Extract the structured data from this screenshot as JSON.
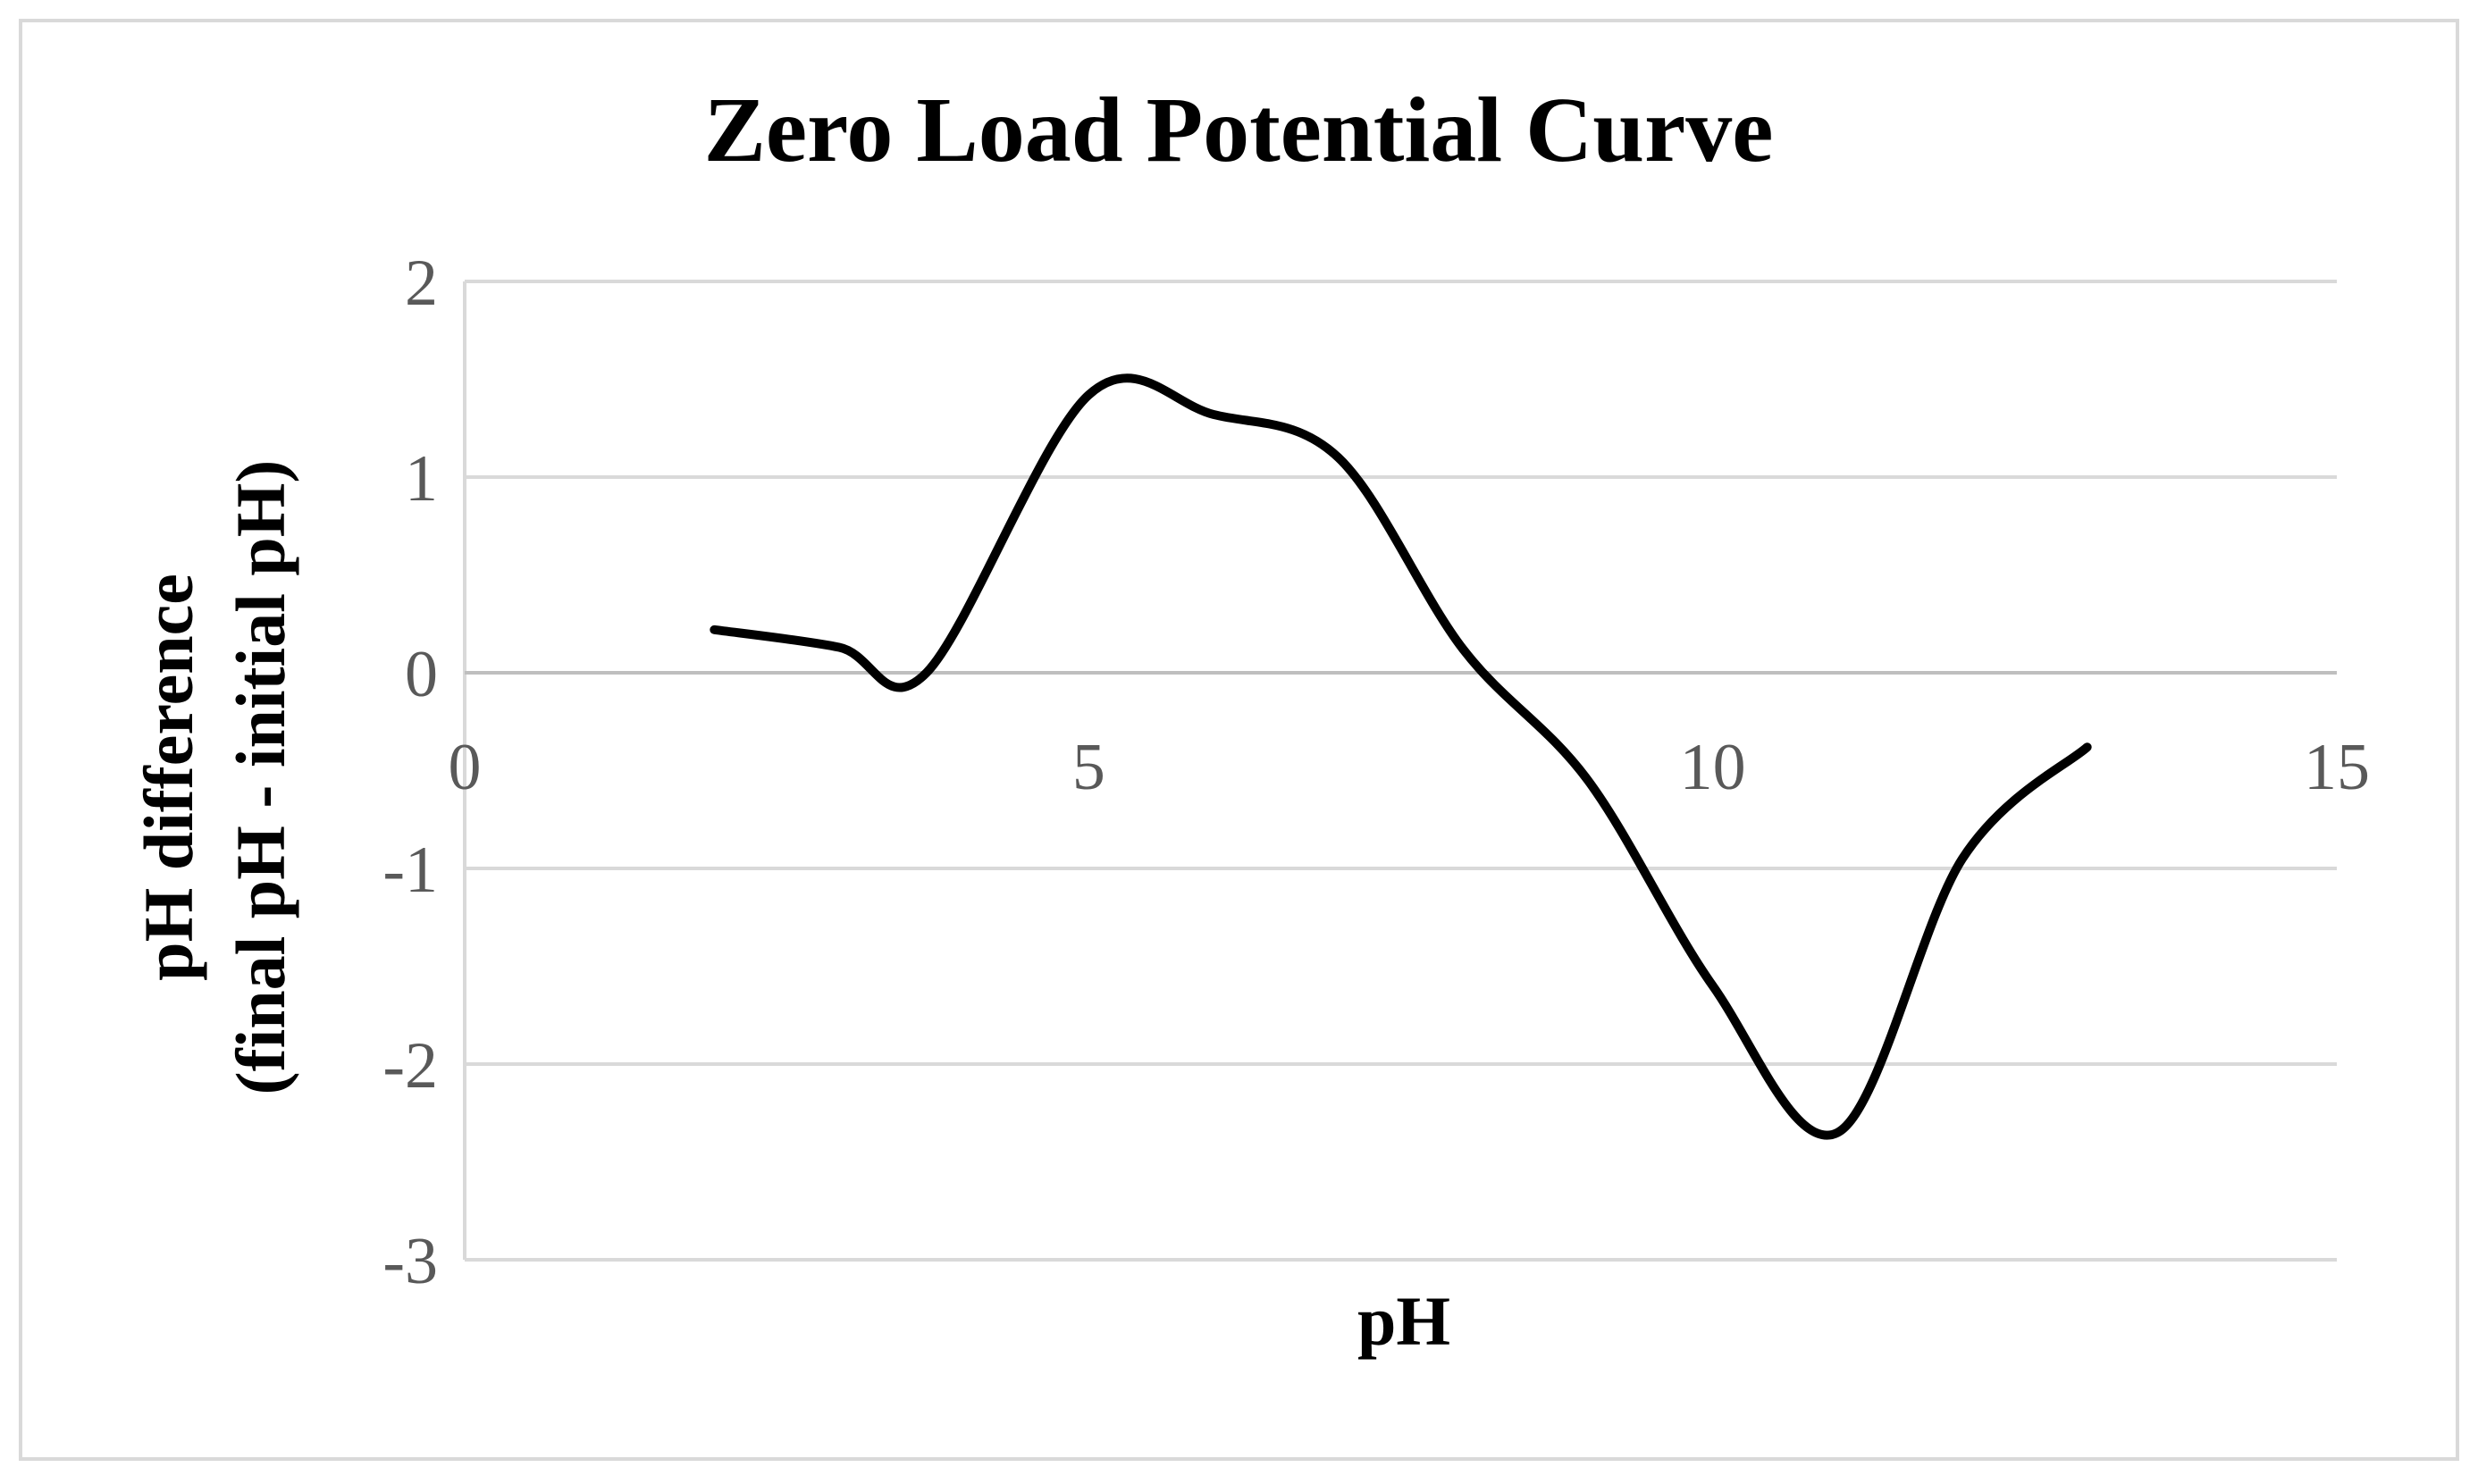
{
  "chart_data": {
    "type": "line",
    "title": "Zero Load Potential Curve",
    "xlabel": "pH",
    "ylabel_lines": [
      "pH difference",
      "(final pH - initial pH)"
    ],
    "xlim": [
      0,
      15
    ],
    "ylim": [
      -3,
      2
    ],
    "x_ticks": [
      0,
      5,
      10,
      15
    ],
    "y_ticks": [
      2,
      1,
      0,
      -1,
      -2,
      -3
    ],
    "grid": "horizontal",
    "legend": "none",
    "line_color": "#000000",
    "grid_color": "#d9d9d9",
    "tick_label_color": "#595959",
    "border_color": "#d9d9d9",
    "series": [
      {
        "x": [
          2,
          3,
          3.7,
          5,
          6,
          7,
          8,
          9,
          10,
          11,
          12,
          13
        ],
        "values": [
          0.22,
          0.13,
          0.0,
          1.42,
          1.32,
          1.1,
          0.12,
          -0.55,
          -1.6,
          -2.35,
          -0.95,
          -0.38
        ]
      }
    ]
  }
}
